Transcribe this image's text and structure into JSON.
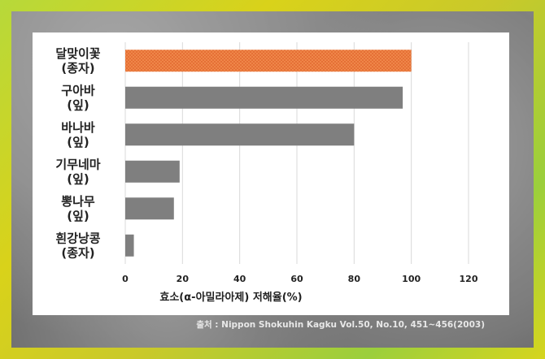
{
  "chart_data": {
    "type": "bar",
    "orientation": "horizontal",
    "categories": [
      [
        "달맞이꽃",
        "(종자)"
      ],
      [
        "구아바",
        "(잎)"
      ],
      [
        "바나바",
        "(잎)"
      ],
      [
        "기무네마",
        "(잎)"
      ],
      [
        "뽕나무",
        "(잎)"
      ],
      [
        "흰강낭콩",
        "(종자)"
      ]
    ],
    "values": [
      100,
      97,
      80,
      19,
      17,
      3
    ],
    "xlabel": "효소(α-아밀라아제) 저해율(%)",
    "xlim": [
      0,
      120
    ],
    "xticks": [
      0,
      20,
      40,
      60,
      80,
      100,
      120
    ],
    "grid": true,
    "colors": {
      "highlight": "#f08a4b",
      "highlight_pattern": "#e0602a",
      "bar": "#7f7f7f",
      "grid": "#d9d9d9"
    }
  },
  "source": "출처 : Nippon Shokuhin Kagku Vol.50, No.10, 451~456(2003)"
}
